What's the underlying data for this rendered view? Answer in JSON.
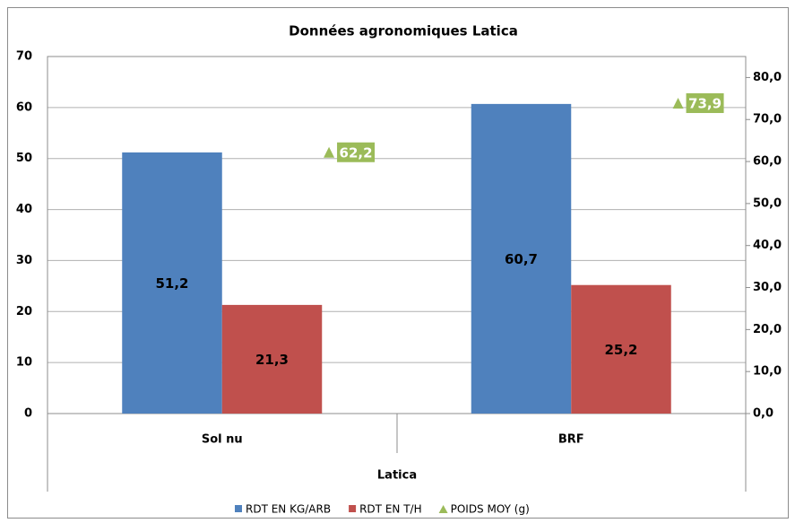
{
  "chart_data": {
    "type": "bar",
    "title": "Données agronomiques Latica",
    "x_label": "Latica",
    "categories": [
      "Sol nu",
      "BRF"
    ],
    "series": [
      {
        "name": "RDT EN KG/ARB",
        "color": "#4f81bd",
        "values": [
          51.2,
          60.7
        ],
        "value_labels": [
          "51,2",
          "60,7"
        ]
      },
      {
        "name": "RDT EN T/H",
        "color": "#c0504d",
        "values": [
          21.3,
          25.2
        ],
        "value_labels": [
          "21,3",
          "25,2"
        ]
      },
      {
        "name": "POIDS MOY (g)",
        "color": "#9bbb59",
        "axis": "y2",
        "marker": "triangle",
        "values": [
          62.2,
          73.9
        ],
        "value_labels": [
          "62,2",
          "73,9"
        ]
      }
    ],
    "ylim": [
      0,
      70
    ],
    "yticks": [
      0,
      10,
      20,
      30,
      40,
      50,
      60,
      70
    ],
    "y2lim": [
      0,
      85
    ],
    "y2ticks": [
      {
        "value": 0,
        "label": "0,0"
      },
      {
        "value": 10,
        "label": "10,0"
      },
      {
        "value": 20,
        "label": "20,0"
      },
      {
        "value": 30,
        "label": "30,0"
      },
      {
        "value": 40,
        "label": "40,0"
      },
      {
        "value": 50,
        "label": "50,0"
      },
      {
        "value": 60,
        "label": "60,0"
      },
      {
        "value": 70,
        "label": "70,0"
      },
      {
        "value": 80,
        "label": "80,0"
      }
    ],
    "grid": true,
    "legend": "bottom"
  }
}
